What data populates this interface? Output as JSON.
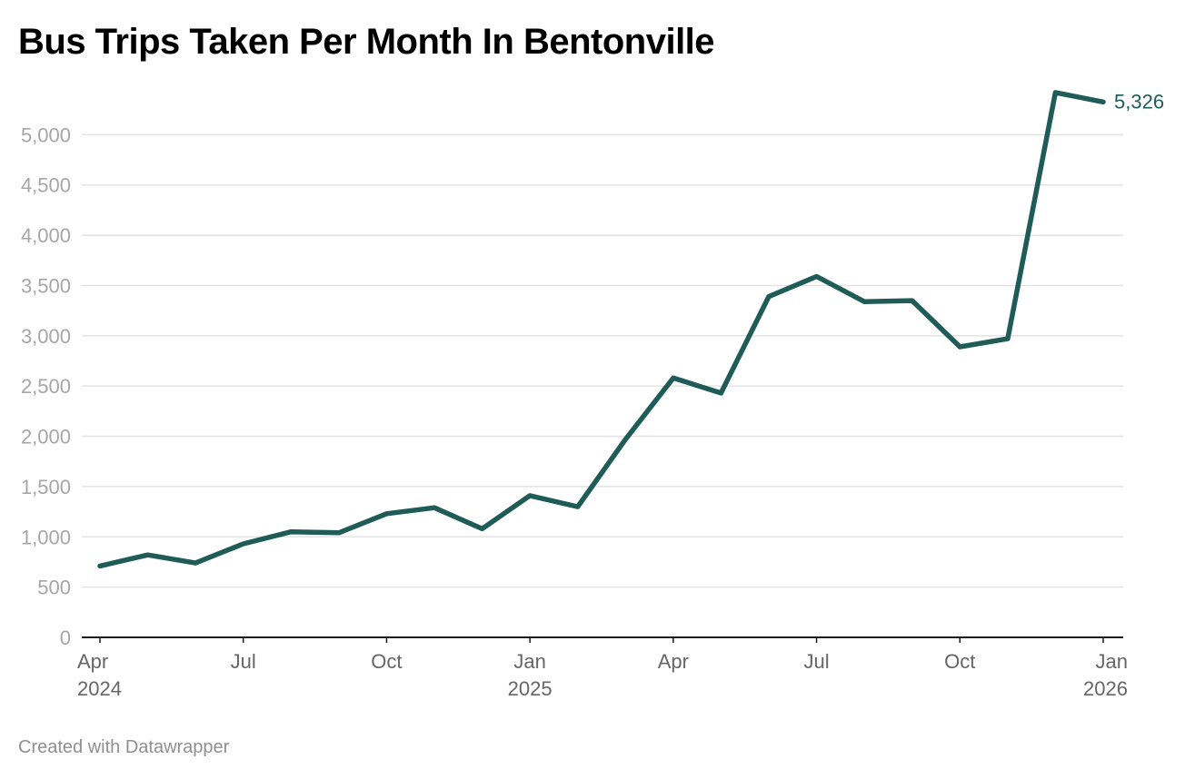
{
  "footer": "Created with Datawrapper",
  "colors": {
    "line": "#1f5c57",
    "grid": "#e3e3e3",
    "axis": "#1a1a1a",
    "ytick": "#a6a6a6",
    "xtick": "#666666"
  },
  "chart_data": {
    "type": "line",
    "title": "Bus Trips Taken Per Month In Bentonville",
    "xlabel": "",
    "ylabel": "",
    "ylim": [
      0,
      5500
    ],
    "yticks": [
      {
        "value": 0,
        "label": "0"
      },
      {
        "value": 500,
        "label": "500"
      },
      {
        "value": 1000,
        "label": "1,000"
      },
      {
        "value": 1500,
        "label": "1,500"
      },
      {
        "value": 2000,
        "label": "2,000"
      },
      {
        "value": 2500,
        "label": "2,500"
      },
      {
        "value": 3000,
        "label": "3,000"
      },
      {
        "value": 3500,
        "label": "3,500"
      },
      {
        "value": 4000,
        "label": "4,000"
      },
      {
        "value": 4500,
        "label": "4,500"
      },
      {
        "value": 5000,
        "label": "5,000"
      }
    ],
    "xticks": [
      {
        "index": 0,
        "label": "Apr",
        "sublabel": "2024"
      },
      {
        "index": 3,
        "label": "Jul",
        "sublabel": ""
      },
      {
        "index": 6,
        "label": "Oct",
        "sublabel": ""
      },
      {
        "index": 9,
        "label": "Jan",
        "sublabel": "2025"
      },
      {
        "index": 12,
        "label": "Apr",
        "sublabel": ""
      },
      {
        "index": 15,
        "label": "Jul",
        "sublabel": ""
      },
      {
        "index": 18,
        "label": "Oct",
        "sublabel": ""
      },
      {
        "index": 21,
        "label": "Jan",
        "sublabel": "2026"
      }
    ],
    "series": [
      {
        "name": "Bus trips",
        "x": [
          "Apr 2024",
          "May 2024",
          "Jun 2024",
          "Jul 2024",
          "Aug 2024",
          "Sep 2024",
          "Oct 2024",
          "Nov 2024",
          "Dec 2024",
          "Jan 2025",
          "Feb 2025",
          "Mar 2025",
          "Apr 2025",
          "May 2025",
          "Jun 2025",
          "Jul 2025",
          "Aug 2025",
          "Sep 2025",
          "Oct 2025",
          "Nov 2025",
          "Dec 2025",
          "Jan 2026"
        ],
        "values": [
          710,
          820,
          740,
          930,
          1050,
          1040,
          1230,
          1290,
          1080,
          1410,
          1300,
          1970,
          2580,
          2430,
          3390,
          3590,
          3340,
          3350,
          2890,
          2970,
          5420,
          5326
        ]
      }
    ],
    "annotations": [
      {
        "label": "5,326",
        "index": 21
      }
    ]
  }
}
